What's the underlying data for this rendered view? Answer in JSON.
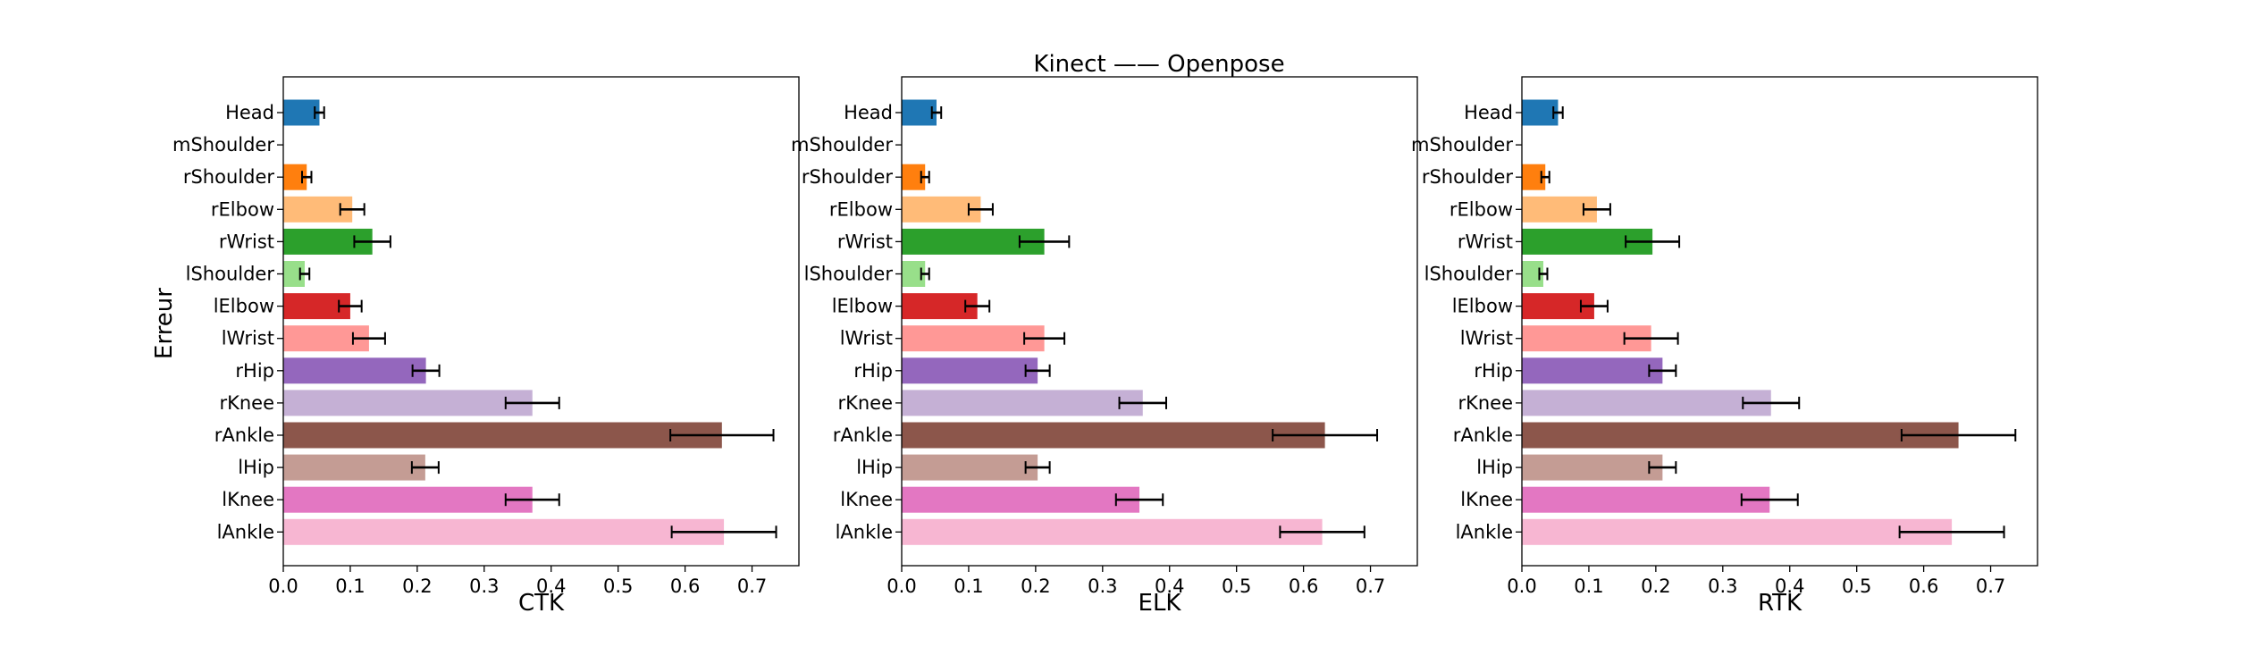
{
  "figure": {
    "suptitle": "Kinect —— Openpose",
    "ylabel": "Erreur"
  },
  "chart_data": [
    {
      "type": "bar",
      "orientation": "horizontal",
      "title": "",
      "xlabel": "CTK",
      "ylabel": "Erreur",
      "xlim": [
        0,
        0.77
      ],
      "xticks": [
        "0.0",
        "0.1",
        "0.2",
        "0.3",
        "0.4",
        "0.5",
        "0.6",
        "0.7"
      ],
      "categories": [
        "Head",
        "mShoulder",
        "rShoulder",
        "rElbow",
        "rWrist",
        "lShoulder",
        "lElbow",
        "lWrist",
        "rHip",
        "rKnee",
        "rAnkle",
        "lHip",
        "lKnee",
        "lAnkle"
      ],
      "values": [
        0.054,
        0.0,
        0.035,
        0.103,
        0.133,
        0.032,
        0.1,
        0.128,
        0.213,
        0.372,
        0.655,
        0.212,
        0.372,
        0.658
      ],
      "errors": [
        0.007,
        0.0,
        0.007,
        0.018,
        0.027,
        0.007,
        0.017,
        0.024,
        0.02,
        0.04,
        0.077,
        0.02,
        0.04,
        0.078
      ],
      "colors": [
        "#1f77b4",
        "#aec7e8",
        "#ff7f0e",
        "#ffbb78",
        "#2ca02c",
        "#98df8a",
        "#d62728",
        "#ff9896",
        "#9467bd",
        "#c5b0d5",
        "#8c564b",
        "#c49c94",
        "#e377c2",
        "#f7b6d2"
      ],
      "grid": false
    },
    {
      "type": "bar",
      "orientation": "horizontal",
      "title": "",
      "xlabel": "ELK",
      "ylabel": "",
      "xlim": [
        0,
        0.77
      ],
      "xticks": [
        "0.0",
        "0.1",
        "0.2",
        "0.3",
        "0.4",
        "0.5",
        "0.6",
        "0.7"
      ],
      "categories": [
        "Head",
        "mShoulder",
        "rShoulder",
        "rElbow",
        "rWrist",
        "lShoulder",
        "lElbow",
        "lWrist",
        "rHip",
        "rKnee",
        "rAnkle",
        "lHip",
        "lKnee",
        "lAnkle"
      ],
      "values": [
        0.052,
        0.0,
        0.035,
        0.118,
        0.213,
        0.035,
        0.113,
        0.213,
        0.203,
        0.36,
        0.632,
        0.203,
        0.355,
        0.628
      ],
      "errors": [
        0.007,
        0.0,
        0.006,
        0.018,
        0.037,
        0.006,
        0.018,
        0.03,
        0.018,
        0.035,
        0.078,
        0.018,
        0.035,
        0.063
      ],
      "colors": [
        "#1f77b4",
        "#aec7e8",
        "#ff7f0e",
        "#ffbb78",
        "#2ca02c",
        "#98df8a",
        "#d62728",
        "#ff9896",
        "#9467bd",
        "#c5b0d5",
        "#8c564b",
        "#c49c94",
        "#e377c2",
        "#f7b6d2"
      ],
      "grid": false
    },
    {
      "type": "bar",
      "orientation": "horizontal",
      "title": "",
      "xlabel": "RTK",
      "ylabel": "",
      "xlim": [
        0,
        0.77
      ],
      "xticks": [
        "0.0",
        "0.1",
        "0.2",
        "0.3",
        "0.4",
        "0.5",
        "0.6",
        "0.7"
      ],
      "categories": [
        "Head",
        "mShoulder",
        "rShoulder",
        "rElbow",
        "rWrist",
        "lShoulder",
        "lElbow",
        "lWrist",
        "rHip",
        "rKnee",
        "rAnkle",
        "lHip",
        "lKnee",
        "lAnkle"
      ],
      "values": [
        0.054,
        0.0,
        0.035,
        0.112,
        0.195,
        0.032,
        0.108,
        0.193,
        0.21,
        0.372,
        0.652,
        0.21,
        0.37,
        0.642
      ],
      "errors": [
        0.007,
        0.0,
        0.006,
        0.02,
        0.04,
        0.006,
        0.02,
        0.04,
        0.02,
        0.042,
        0.085,
        0.02,
        0.042,
        0.078
      ],
      "colors": [
        "#1f77b4",
        "#aec7e8",
        "#ff7f0e",
        "#ffbb78",
        "#2ca02c",
        "#98df8a",
        "#d62728",
        "#ff9896",
        "#9467bd",
        "#c5b0d5",
        "#8c564b",
        "#c49c94",
        "#e377c2",
        "#f7b6d2"
      ],
      "grid": false
    }
  ]
}
